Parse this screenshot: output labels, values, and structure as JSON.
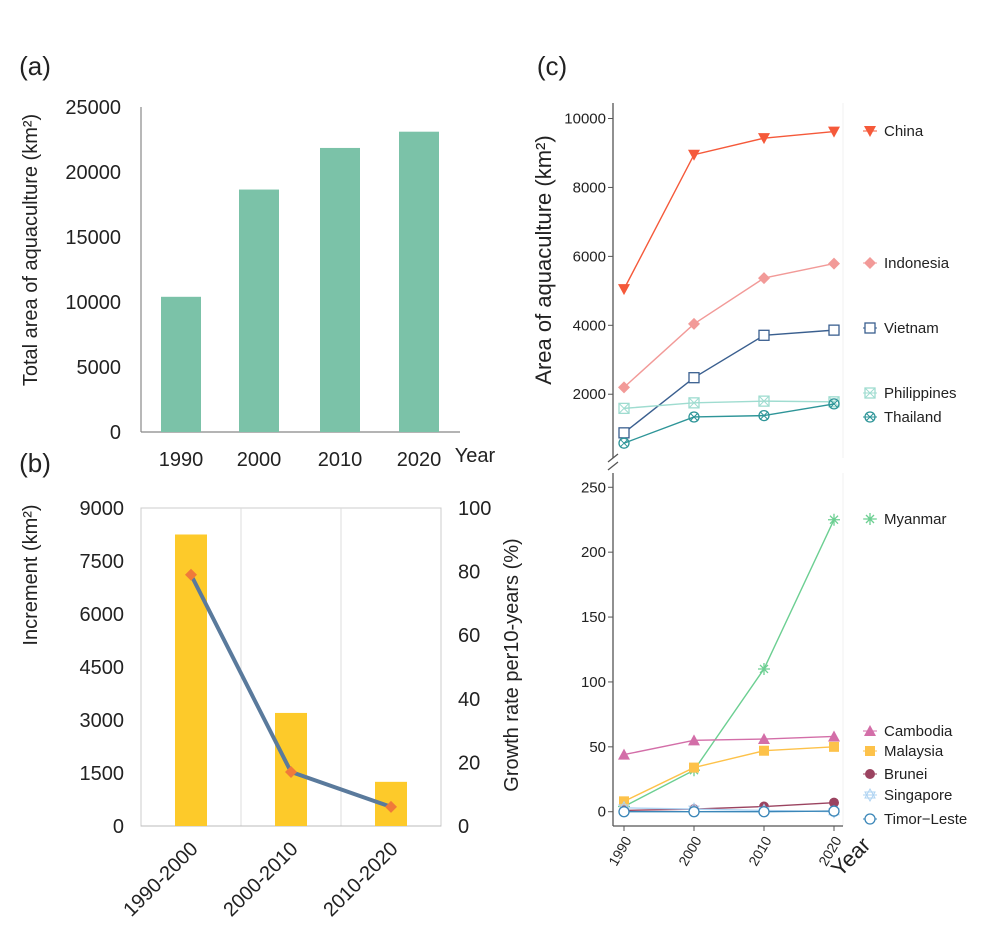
{
  "chart_data": [
    {
      "panel": "(a)",
      "type": "bar",
      "categories": [
        "1990",
        "2000",
        "2010",
        "2020"
      ],
      "values": [
        10400,
        18650,
        21850,
        23100
      ],
      "xlabel": "Year",
      "ylabel": "Total area of aquaculture (km²)",
      "yticks": [
        0,
        5000,
        10000,
        15000,
        20000,
        25000
      ],
      "ylim": [
        0,
        25000
      ],
      "color": "#7bc2a8"
    },
    {
      "panel": "(b)",
      "type": "bar+line",
      "categories": [
        "1990-2000",
        "2000-2010",
        "2010-2020"
      ],
      "bar_values": [
        8250,
        3200,
        1250
      ],
      "line_values": [
        79,
        17,
        6
      ],
      "ylabel": "Increment (km²)",
      "y2label": "Growth rate per10-years (%)",
      "yticks": [
        0,
        1500,
        3000,
        4500,
        6000,
        7500,
        9000
      ],
      "y2ticks": [
        0,
        20,
        40,
        60,
        80,
        100
      ],
      "ylim": [
        0,
        9000
      ],
      "y2lim": [
        0,
        100
      ],
      "grid": true,
      "bar_color": "#fdca2a",
      "line_color": "#5a7a9c",
      "marker_color": "#f07a3a"
    },
    {
      "panel": "(c)",
      "type": "line",
      "x": [
        "1990",
        "2000",
        "2010",
        "2020"
      ],
      "xlabel": "Year",
      "ylabel": "Area of aquaculture (km²)",
      "upper": {
        "yticks": [
          2000,
          4000,
          6000,
          8000,
          10000
        ],
        "ylim": [
          150,
          10450
        ],
        "series": [
          {
            "name": "China",
            "values": [
              5050,
              8950,
              9430,
              9620
            ],
            "color": "#f5593a",
            "marker": "triangle-down"
          },
          {
            "name": "Indonesia",
            "values": [
              2200,
              4040,
              5370,
              5790
            ],
            "color": "#f29a98",
            "marker": "diamond"
          },
          {
            "name": "Vietnam",
            "values": [
              880,
              2480,
              3710,
              3860
            ],
            "color": "#3a5f8f",
            "marker": "square-open"
          },
          {
            "name": "Philippines",
            "values": [
              1590,
              1750,
              1800,
              1780
            ],
            "color": "#9fdcd0",
            "marker": "square-x"
          },
          {
            "name": "Thailand",
            "values": [
              580,
              1340,
              1380,
              1720
            ],
            "color": "#2e9598",
            "marker": "circle-x"
          }
        ]
      },
      "lower": {
        "yticks": [
          0,
          50,
          100,
          150,
          200,
          250
        ],
        "ylim": [
          -11,
          261
        ],
        "series": [
          {
            "name": "Myanmar",
            "values": [
              4,
              32,
              110,
              225
            ],
            "color": "#6ccf92",
            "marker": "asterisk"
          },
          {
            "name": "Cambodia",
            "values": [
              44,
              55,
              56,
              58
            ],
            "color": "#d36ea8",
            "marker": "triangle-up"
          },
          {
            "name": "Malaysia",
            "values": [
              8,
              34,
              47,
              50
            ],
            "color": "#fdc24a",
            "marker": "square"
          },
          {
            "name": "Brunei",
            "values": [
              1,
              2,
              4,
              7
            ],
            "color": "#9b4360",
            "marker": "circle"
          },
          {
            "name": "Singapore",
            "values": [
              3,
              2,
              1,
              0
            ],
            "color": "#aed3f2",
            "marker": "star"
          },
          {
            "name": "Timor−Leste",
            "values": [
              0,
              0,
              0,
              0.5
            ],
            "color": "#3a86b8",
            "marker": "circle-open"
          }
        ]
      }
    }
  ]
}
